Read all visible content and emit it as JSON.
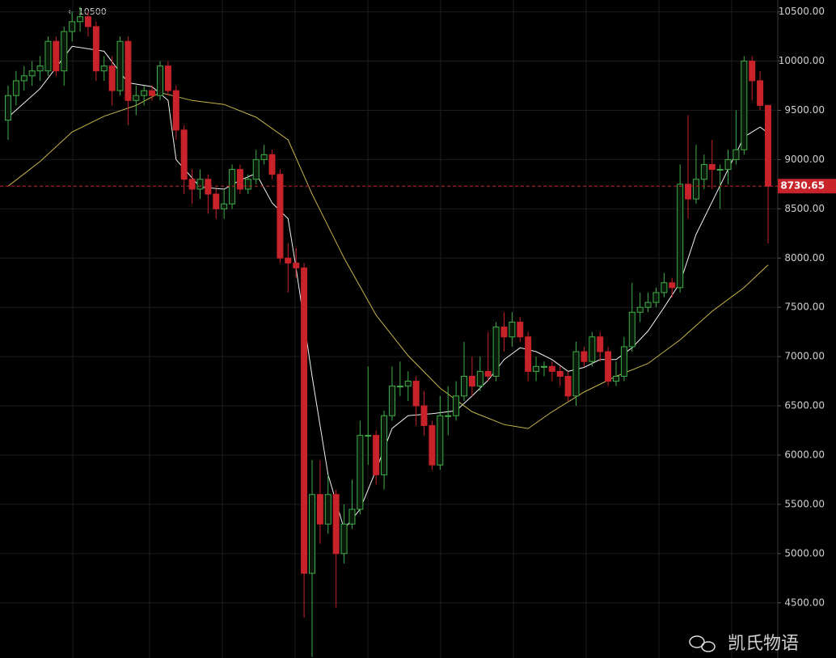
{
  "chart_data": {
    "type": "candlestick",
    "annotation": "← 10500",
    "last_price": 8730.65,
    "up_color": "#3fae49",
    "down_color": "#c8222a",
    "ylim": [
      3940,
      10620
    ],
    "yticks": [
      {
        "value": 4500,
        "label": "4500.00"
      },
      {
        "value": 5000,
        "label": "5000.00"
      },
      {
        "value": 5500,
        "label": "5500.00"
      },
      {
        "value": 6000,
        "label": "6000.00"
      },
      {
        "value": 6500,
        "label": "6500.00"
      },
      {
        "value": 7000,
        "label": "7000.00"
      },
      {
        "value": 7500,
        "label": "7500.00"
      },
      {
        "value": 8000,
        "label": "8000.00"
      },
      {
        "value": 8500,
        "label": "8500.00"
      },
      {
        "value": 9000,
        "label": "9000.00"
      },
      {
        "value": 9500,
        "label": "9500.00"
      },
      {
        "value": 10000,
        "label": "10000.00"
      },
      {
        "value": 10500,
        "label": "10500.00"
      }
    ],
    "grid": true,
    "candles": {
      "open": [
        9400,
        9650,
        9800,
        9850,
        9900,
        9900,
        10200,
        9900,
        10300,
        10400,
        10450,
        10350,
        9900,
        9950,
        9700,
        10200,
        9600,
        9650,
        9700,
        9650,
        9950,
        9700,
        9300,
        8800,
        8700,
        8800,
        8650,
        8500,
        8550,
        8900,
        8700,
        8800,
        9000,
        9050,
        8850,
        8000,
        7950,
        7900,
        4800,
        5600,
        5300,
        5600,
        5000,
        5300,
        5450,
        6200,
        6200,
        5800,
        6400,
        6700,
        6700,
        6750,
        6500,
        6300,
        5900,
        6400,
        6400,
        6600,
        6800,
        6700,
        6850,
        6800,
        7300,
        7200,
        7350,
        7200,
        6850,
        6900,
        6900,
        6850,
        6800,
        6600,
        7050,
        6950,
        7200,
        7050,
        6750,
        6800,
        7100,
        7450,
        7500,
        7550,
        7650,
        7750,
        7700,
        8750,
        8600,
        8800,
        8950,
        8900,
        8900,
        9000,
        9100,
        10000,
        9800,
        9550
      ],
      "high": [
        9750,
        9900,
        9950,
        10000,
        10050,
        10250,
        10250,
        10350,
        10500,
        10550,
        10500,
        10400,
        10050,
        10050,
        10250,
        10250,
        9750,
        9750,
        9750,
        10000,
        10000,
        9750,
        9350,
        8900,
        8900,
        8850,
        8700,
        8700,
        8950,
        8950,
        8850,
        9100,
        9150,
        9100,
        8900,
        8150,
        8100,
        7950,
        5950,
        5950,
        5800,
        5650,
        5500,
        5750,
        6350,
        6900,
        6250,
        6450,
        6900,
        6950,
        6850,
        6800,
        6650,
        6350,
        6600,
        6700,
        6750,
        7150,
        7000,
        7000,
        7250,
        7350,
        7450,
        7450,
        7400,
        7250,
        7000,
        6950,
        6950,
        6900,
        6850,
        7150,
        7100,
        7250,
        7250,
        7100,
        6950,
        7200,
        7750,
        7650,
        7650,
        7700,
        7850,
        7800,
        8950,
        9450,
        9150,
        9050,
        9200,
        8950,
        9100,
        9500,
        10050,
        10050,
        9900,
        9550
      ],
      "low": [
        9200,
        9550,
        9700,
        9750,
        9800,
        9850,
        9850,
        9750,
        10200,
        10300,
        10250,
        9800,
        9800,
        9550,
        9650,
        9350,
        9450,
        9550,
        9600,
        9600,
        9650,
        9200,
        8650,
        8550,
        8600,
        8450,
        8400,
        8400,
        8500,
        8650,
        8650,
        8750,
        8950,
        8800,
        7950,
        7650,
        7800,
        4350,
        3950,
        5100,
        5200,
        4450,
        4900,
        5250,
        5400,
        5900,
        5700,
        5650,
        6350,
        6600,
        6550,
        6300,
        6200,
        5850,
        5850,
        6200,
        6350,
        6550,
        6600,
        6650,
        6750,
        6750,
        7050,
        7100,
        7150,
        6750,
        6750,
        6800,
        6750,
        6700,
        6550,
        6500,
        6900,
        6900,
        6950,
        6700,
        6700,
        6750,
        7050,
        7350,
        7450,
        7500,
        7600,
        7600,
        7650,
        8400,
        8550,
        8700,
        8700,
        8500,
        8750,
        8950,
        9050,
        9600,
        9500,
        8150
      ],
      "close": [
        9650,
        9800,
        9850,
        9900,
        9950,
        10200,
        9900,
        10300,
        10400,
        10450,
        10350,
        9900,
        9950,
        9700,
        10200,
        9600,
        9650,
        9700,
        9650,
        9950,
        9700,
        9300,
        8800,
        8700,
        8800,
        8650,
        8500,
        8550,
        8900,
        8700,
        8800,
        9000,
        9050,
        8850,
        8000,
        7950,
        7900,
        4800,
        5600,
        5300,
        5600,
        5000,
        5300,
        5450,
        6200,
        6200,
        5800,
        6400,
        6700,
        6700,
        6750,
        6500,
        6300,
        5900,
        6400,
        6400,
        6600,
        6800,
        6700,
        6850,
        6800,
        7300,
        7200,
        7350,
        7200,
        6850,
        6900,
        6900,
        6850,
        6800,
        6600,
        7050,
        6950,
        7200,
        7050,
        6750,
        6800,
        7100,
        7450,
        7500,
        7550,
        7650,
        7750,
        7700,
        8750,
        8600,
        8800,
        8950,
        8900,
        8900,
        9000,
        9100,
        10000,
        9800,
        9550,
        8730
      ]
    },
    "lines": [
      {
        "color": "#f2f2f2",
        "x": [
          0,
          4,
          8,
          12,
          15,
          18,
          20,
          21,
          24,
          27,
          29,
          31,
          33,
          35,
          36,
          38,
          40,
          42,
          44,
          46,
          48,
          50,
          53,
          56,
          58,
          60,
          62,
          64,
          66,
          68,
          70,
          72,
          74,
          76,
          78,
          80,
          82,
          84,
          86,
          88,
          90,
          92,
          94,
          95
        ],
        "values": [
          9430,
          9720,
          10150,
          10100,
          9780,
          9740,
          9600,
          9000,
          8720,
          8700,
          8790,
          8860,
          8560,
          8400,
          7900,
          6800,
          5800,
          5250,
          5450,
          5850,
          6270,
          6400,
          6420,
          6450,
          6600,
          6760,
          6970,
          7090,
          7050,
          6970,
          6850,
          6890,
          6970,
          6970,
          7090,
          7260,
          7500,
          7750,
          8240,
          8570,
          8900,
          9230,
          9330,
          9270
        ]
      },
      {
        "color": "#c9b64a",
        "x": [
          0,
          4,
          8,
          12,
          16,
          19,
          23,
          27,
          31,
          35,
          38,
          42,
          46,
          50,
          54,
          58,
          62,
          65,
          68,
          72,
          76,
          80,
          84,
          88,
          92,
          95
        ],
        "values": [
          8730,
          8980,
          9280,
          9440,
          9550,
          9680,
          9600,
          9560,
          9430,
          9200,
          8650,
          8000,
          7420,
          7010,
          6680,
          6440,
          6310,
          6270,
          6440,
          6640,
          6800,
          6930,
          7170,
          7460,
          7700,
          7930
        ]
      }
    ]
  },
  "watermark": "凯氏物语"
}
